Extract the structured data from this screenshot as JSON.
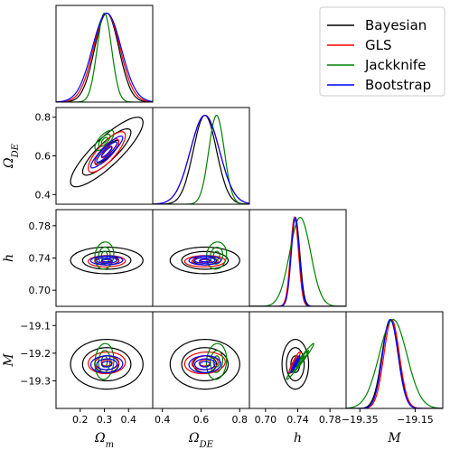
{
  "chart_data": {
    "type": "corner",
    "parameters": [
      {
        "key": "om",
        "label": "Ω",
        "sub": "m",
        "range": [
          0.1,
          0.5
        ],
        "ticks": [
          0.2,
          0.3,
          0.4
        ],
        "tick_labels": [
          "0.2",
          "0.3",
          "0.4"
        ]
      },
      {
        "key": "ode",
        "label": "Ω",
        "sub": "DE",
        "range": [
          0.35,
          0.85
        ],
        "ticks": [
          0.4,
          0.6,
          0.8
        ],
        "tick_labels": [
          "0.4",
          "0.6",
          "0.8"
        ]
      },
      {
        "key": "h",
        "label": "h",
        "sub": "",
        "range": [
          0.68,
          0.8
        ],
        "ticks": [
          0.7,
          0.74,
          0.78
        ],
        "tick_labels": [
          "0.70",
          "0.74",
          "0.78"
        ]
      },
      {
        "key": "M",
        "label": "M",
        "sub": "",
        "range": [
          -19.4,
          -19.05
        ],
        "ticks": [
          -19.35,
          -19.15
        ],
        "tick_labels": [
          "−19.35",
          "−19.15"
        ]
      }
    ],
    "offdiag_ticks": {
      "ode": {
        "ticks": [
          0.4,
          0.6,
          0.8
        ],
        "tick_labels": [
          "0.4",
          "0.6",
          "0.8"
        ]
      },
      "h": {
        "ticks": [
          0.7,
          0.74,
          0.78
        ],
        "tick_labels": [
          "0.70",
          "0.74",
          "0.78"
        ]
      },
      "M": {
        "ticks": [
          -19.3,
          -19.2,
          -19.1
        ],
        "tick_labels": [
          "−19.3",
          "−19.2",
          "−19.1"
        ]
      }
    },
    "legend_position": "top-right",
    "series": [
      {
        "name": "Bayesian",
        "color": "#000000",
        "mean": [
          0.31,
          0.62,
          0.737,
          -19.24
        ],
        "sigma": [
          0.05,
          0.06,
          0.0055,
          0.03
        ],
        "corr": {
          "om-ode": 0.85,
          "om-h": 0.0,
          "om-M": 0.0,
          "ode-h": 0.0,
          "ode-M": 0.0,
          "h-M": 0.0
        },
        "contour_scale": [
          1.0,
          2.0,
          3.0
        ]
      },
      {
        "name": "GLS",
        "color": "#ff0000",
        "mean": [
          0.31,
          0.62,
          0.736,
          -19.235
        ],
        "sigma": [
          0.055,
          0.075,
          0.005,
          0.028
        ],
        "corr": {
          "om-ode": 0.8,
          "om-h": 0.05,
          "om-M": 0.05,
          "ode-h": 0.05,
          "ode-M": 0.1,
          "h-M": 0.93
        },
        "contour_scale": [
          0.4,
          0.9,
          1.4
        ]
      },
      {
        "name": "Jackknife",
        "color": "#008000",
        "mean": [
          0.3,
          0.68,
          0.743,
          -19.23
        ],
        "sigma": [
          0.03,
          0.04,
          0.013,
          0.05
        ],
        "corr": {
          "om-ode": 0.7,
          "om-h": 0.1,
          "om-M": 0.1,
          "ode-h": 0.1,
          "ode-M": 0.1,
          "h-M": 0.98
        },
        "contour_scale": [
          0.4,
          0.8,
          1.3
        ]
      },
      {
        "name": "Bootstrap",
        "color": "#0000ff",
        "mean": [
          0.31,
          0.62,
          0.737,
          -19.24
        ],
        "sigma": [
          0.06,
          0.075,
          0.005,
          0.028
        ],
        "corr": {
          "om-ode": 0.9,
          "om-h": 0.05,
          "om-M": 0.05,
          "ode-h": 0.05,
          "ode-M": 0.05,
          "h-M": 0.95
        },
        "contour_scale": [
          0.35,
          0.7,
          1.1
        ]
      }
    ]
  }
}
